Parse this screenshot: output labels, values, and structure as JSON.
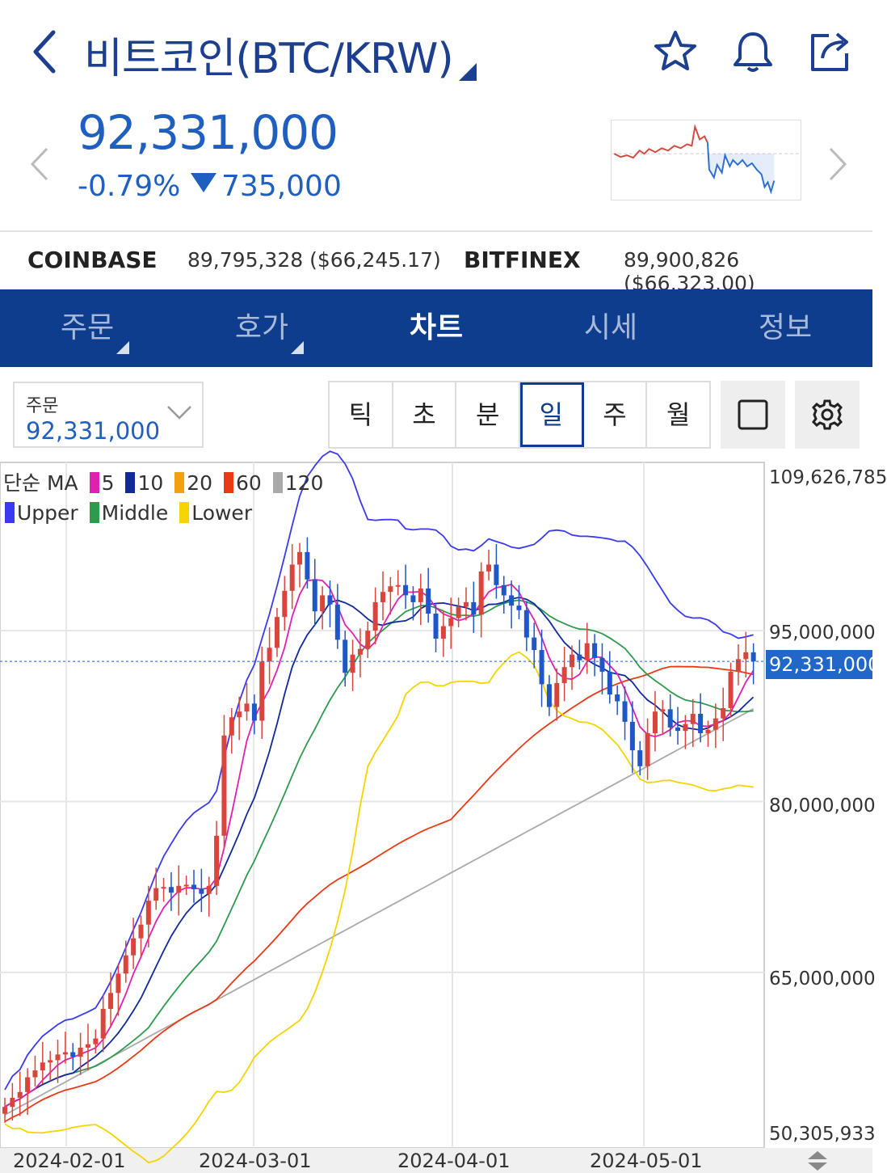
{
  "header": {
    "title": "비트코인(BTC/KRW)"
  },
  "ticker": {
    "price": "92,331,000",
    "change_pct": "-0.79%",
    "change_amt": "735,000"
  },
  "exchanges": [
    {
      "name": "COINBASE",
      "value": "89,795,328 ($66,245.17)"
    },
    {
      "name": "BITFINEX",
      "value": "89,900,826 ($66,323.00)"
    }
  ],
  "tabs": [
    "주문",
    "호가",
    "차트",
    "시세",
    "정보"
  ],
  "active_tab": "차트",
  "order": {
    "label": "주문",
    "value": "92,331,000"
  },
  "periods": [
    "틱",
    "초",
    "분",
    "일",
    "주",
    "월"
  ],
  "active_period": "일",
  "legend": {
    "ma_label": "단순 MA",
    "ma": [
      {
        "name": "5",
        "color": "#e020b0"
      },
      {
        "name": "10",
        "color": "#102a9c"
      },
      {
        "name": "20",
        "color": "#f0a010"
      },
      {
        "name": "60",
        "color": "#e83a14"
      },
      {
        "name": "120",
        "color": "#aaaaaa"
      }
    ],
    "bb": [
      {
        "name": "Upper",
        "color": "#3a3af0"
      },
      {
        "name": "Middle",
        "color": "#2e9a4e"
      },
      {
        "name": "Lower",
        "color": "#f5d400"
      }
    ]
  },
  "colors": {
    "up": "#d9453c",
    "down": "#1f56c8",
    "accent": "#0d3d8c",
    "price_blue": "#1e5fbf"
  },
  "chart_data": {
    "type": "candlestick",
    "y_axis_ticks": [
      "109,626,785",
      "95,000,000",
      "80,000,000",
      "65,000,000",
      "50,305,933"
    ],
    "x_axis_ticks": [
      "2024-02-01",
      "2024-03-01",
      "2024-04-01",
      "2024-05-01"
    ],
    "current_price_label": "92,331,000",
    "ylim": [
      50305933,
      109626785
    ],
    "close_series": [
      53.2,
      54.0,
      54.5,
      55.8,
      56.4,
      57.1,
      57.3,
      57.8,
      58.0,
      57.6,
      58.4,
      58.7,
      59.2,
      61.8,
      63.2,
      64.9,
      66.5,
      68.0,
      69.2,
      71.3,
      72.4,
      72.5,
      72.0,
      72.6,
      72.7,
      72.3,
      71.9,
      72.6,
      77.0,
      85.8,
      87.4,
      87.9,
      88.6,
      87.1,
      92.3,
      93.5,
      96.2,
      98.5,
      100.8,
      101.9,
      99.5,
      96.7,
      98.1,
      97.3,
      94.2,
      91.3,
      92.9,
      93.4,
      95.0,
      97.5,
      98.4,
      98.9,
      99.0,
      98.1,
      97.5,
      98.7,
      96.5,
      94.3,
      95.4,
      96.1,
      97.1,
      97.5,
      96.4,
      100.2,
      100.8,
      99.0,
      98.1,
      97.2,
      96.8,
      94.4,
      93.3,
      90.3,
      88.3,
      90.4,
      91.8,
      92.9,
      92.4,
      93.9,
      92.6,
      91.4,
      89.4,
      88.8,
      87.0,
      84.5,
      83.1,
      86.0,
      87.9,
      88.1,
      86.5,
      86.2,
      86.8,
      87.7,
      86.0,
      86.3,
      87.3,
      88.2,
      91.4,
      92.5,
      93.1,
      92.3
    ]
  }
}
